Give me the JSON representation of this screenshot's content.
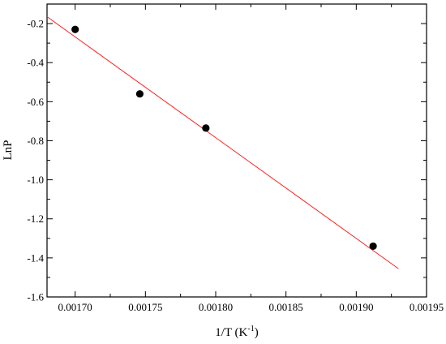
{
  "chart_data": {
    "type": "scatter",
    "title": "",
    "xlabel": "1/T (K",
    "xlabel_superscript": "-1",
    "xlabel_suffix": ")",
    "ylabel": "LnP",
    "xlim": [
      0.00168,
      0.00195
    ],
    "ylim": [
      -1.6,
      -0.1
    ],
    "x_ticks": [
      0.0017,
      0.00175,
      0.0018,
      0.00185,
      0.0019,
      0.00195
    ],
    "x_tick_labels": [
      "0.00170",
      "0.00175",
      "0.00180",
      "0.00185",
      "0.00190",
      "0.00195"
    ],
    "y_ticks": [
      -0.2,
      -0.4,
      -0.6,
      -0.8,
      -1.0,
      -1.2,
      -1.4,
      -1.6
    ],
    "y_tick_labels": [
      "-0.2",
      "-0.4",
      "-0.6",
      "-0.8",
      "-1.0",
      "-1.2",
      "-1.4",
      "-1.6"
    ],
    "grid": false,
    "series": [
      {
        "kind": "points",
        "x": [
          0.0017,
          0.001746,
          0.001793,
          0.001912
        ],
        "y": [
          -0.23,
          -0.56,
          -0.735,
          -1.34
        ],
        "color": "#000000"
      },
      {
        "kind": "fit-line",
        "x": [
          0.00168,
          0.00193
        ],
        "y": [
          -0.165,
          -1.455
        ],
        "color": "#ff2020"
      }
    ]
  }
}
